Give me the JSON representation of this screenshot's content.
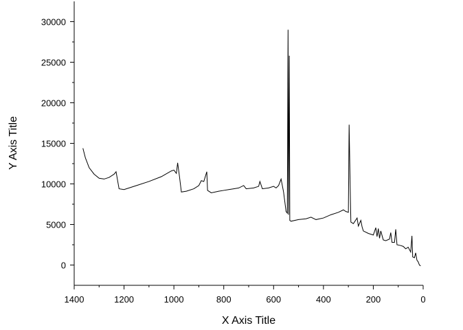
{
  "chart_data": {
    "type": "line",
    "x_label": "X Axis Title",
    "y_label": "Y Axis Title",
    "xlim": [
      1400,
      0
    ],
    "xticks": [
      1400,
      1200,
      1000,
      800,
      600,
      400,
      200,
      0
    ],
    "ylim": [
      -2500,
      32500
    ],
    "yticks": [
      0,
      5000,
      10000,
      15000,
      20000,
      25000,
      30000
    ],
    "color": "#000000",
    "x": [
      1365,
      1355,
      1340,
      1320,
      1300,
      1280,
      1260,
      1240,
      1232,
      1220,
      1200,
      1180,
      1150,
      1100,
      1050,
      1010,
      1000,
      990,
      985,
      978,
      970,
      950,
      920,
      900,
      890,
      880,
      875,
      868,
      865,
      850,
      820,
      800,
      780,
      760,
      740,
      720,
      710,
      680,
      660,
      655,
      645,
      620,
      600,
      590,
      580,
      570,
      560,
      550,
      545,
      542,
      540,
      537,
      535,
      530,
      500,
      470,
      450,
      430,
      400,
      370,
      340,
      320,
      310,
      300,
      297,
      293,
      290,
      280,
      265,
      260,
      250,
      245,
      240,
      220,
      200,
      190,
      185,
      180,
      175,
      170,
      160,
      150,
      135,
      130,
      125,
      115,
      110,
      105,
      90,
      80,
      70,
      60,
      50,
      45,
      42,
      35,
      30,
      25,
      20,
      15,
      10
    ],
    "values": [
      14400,
      13200,
      12000,
      11200,
      10700,
      10600,
      10800,
      11200,
      11500,
      9400,
      9300,
      9500,
      9800,
      10300,
      10900,
      11600,
      11700,
      11300,
      12600,
      11000,
      9000,
      9100,
      9400,
      9800,
      10400,
      10300,
      10800,
      11500,
      9200,
      8900,
      9100,
      9200,
      9300,
      9400,
      9500,
      9800,
      9400,
      9500,
      9700,
      10300,
      9400,
      9500,
      9700,
      9500,
      9800,
      10600,
      9000,
      6600,
      6400,
      29000,
      6200,
      25800,
      5500,
      5400,
      5600,
      5700,
      5900,
      5600,
      5800,
      6200,
      6500,
      6800,
      6600,
      6500,
      17300,
      10000,
      5300,
      5100,
      5800,
      4800,
      5500,
      4700,
      4200,
      3900,
      3700,
      4600,
      3500,
      4500,
      3300,
      4200,
      3100,
      3000,
      3200,
      4000,
      2800,
      2800,
      4400,
      2500,
      2400,
      2300,
      2000,
      2200,
      1600,
      3600,
      1000,
      900,
      1500,
      600,
      400,
      0,
      -100
    ]
  }
}
